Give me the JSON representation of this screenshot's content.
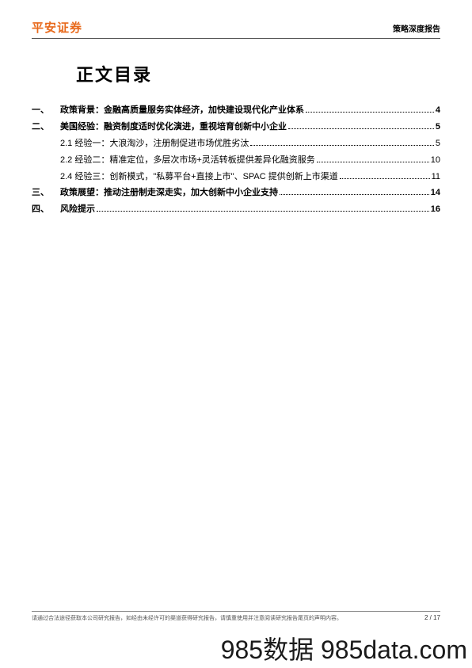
{
  "header": {
    "logo": "平安证券",
    "doc_type": "策略深度报告"
  },
  "toc": {
    "title": "正文目录",
    "entries": [
      {
        "level": 1,
        "num": "一、",
        "text": "政策背景：金融高质量服务实体经济，加快建设现代化产业体系",
        "page": "4"
      },
      {
        "level": 1,
        "num": "二、",
        "text": "美国经验：融资制度适时优化演进，重视培育创新中小企业",
        "page": "5"
      },
      {
        "level": 2,
        "num": "",
        "text": "2.1 经验一：大浪淘沙，注册制促进市场优胜劣汰",
        "page": "5"
      },
      {
        "level": 2,
        "num": "",
        "text": "2.2 经验二：精准定位，多层次市场+灵活转板提供差异化融资服务",
        "page": "10"
      },
      {
        "level": 2,
        "num": "",
        "text": "2.4 经验三：创新模式，\"私募平台+直接上市\"、SPAC 提供创新上市渠道",
        "page": "11"
      },
      {
        "level": 1,
        "num": "三、",
        "text": "政策展望：推动注册制走深走实，加大创新中小企业支持",
        "page": "14"
      },
      {
        "level": 1,
        "num": "四、",
        "text": "风险提示",
        "page": "16"
      }
    ]
  },
  "footer": {
    "disclaimer": "请通过合法途径获取本公司研究报告，如经由未经许可的渠道获得研究报告，请慎重使用并注意阅读研究报告尾页的声明内容。",
    "page": "2 / 17"
  },
  "watermark": "985数据 985data.com"
}
